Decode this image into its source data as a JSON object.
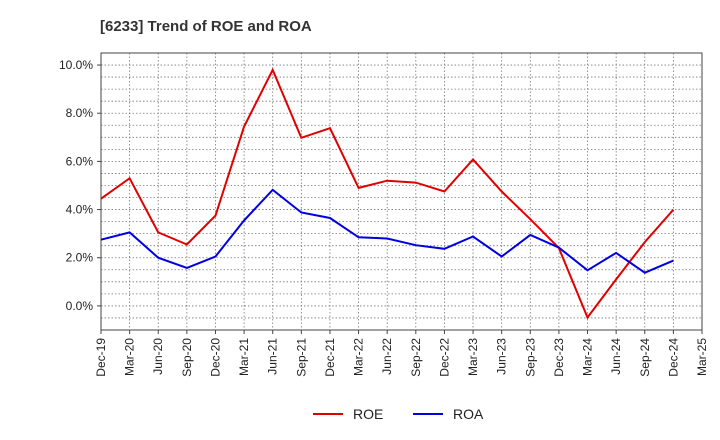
{
  "chart_data": {
    "type": "line",
    "title": "[6233]  Trend of ROE and ROA",
    "xlabel": "",
    "ylabel": "",
    "categories": [
      "Dec-19",
      "Mar-20",
      "Jun-20",
      "Sep-20",
      "Dec-20",
      "Mar-21",
      "Jun-21",
      "Sep-21",
      "Dec-21",
      "Mar-22",
      "Jun-22",
      "Sep-22",
      "Dec-22",
      "Mar-23",
      "Jun-23",
      "Sep-23",
      "Dec-23",
      "Mar-24",
      "Jun-24",
      "Sep-24",
      "Dec-24",
      "Mar-25"
    ],
    "ylim": [
      -1.0,
      10.5
    ],
    "yticks": [
      0.0,
      2.0,
      4.0,
      6.0,
      8.0,
      10.0
    ],
    "ytick_labels": [
      "0.0%",
      "2.0%",
      "4.0%",
      "6.0%",
      "8.0%",
      "10.0%"
    ],
    "grid": true,
    "legend_position": "bottom",
    "series": [
      {
        "name": "ROE",
        "color": "#e00000",
        "values": [
          4.45,
          5.3,
          3.05,
          2.55,
          3.75,
          7.45,
          9.8,
          6.98,
          7.38,
          4.9,
          5.2,
          5.12,
          4.75,
          6.08,
          4.75,
          3.6,
          2.4,
          -0.48,
          1.1,
          2.65,
          4.0,
          null
        ]
      },
      {
        "name": "ROA",
        "color": "#0000e0",
        "values": [
          2.75,
          3.05,
          2.0,
          1.58,
          2.05,
          3.55,
          4.82,
          3.88,
          3.65,
          2.85,
          2.8,
          2.52,
          2.37,
          2.88,
          2.05,
          2.95,
          2.42,
          1.48,
          2.2,
          1.38,
          1.88,
          null
        ]
      }
    ]
  }
}
